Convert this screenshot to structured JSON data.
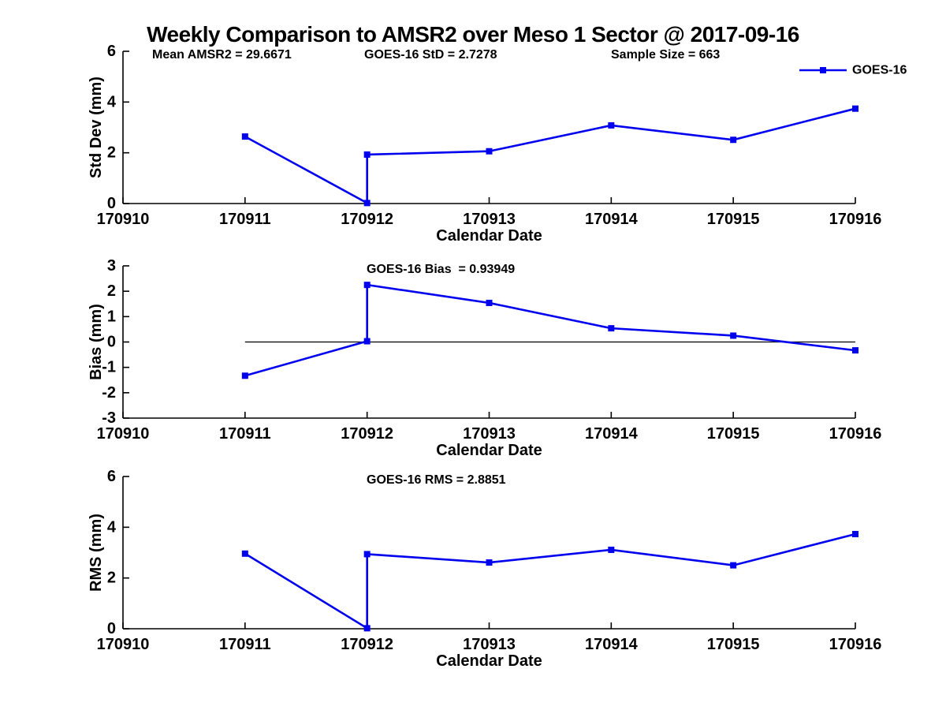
{
  "figure": {
    "title": "Weekly Comparison to AMSR2 over Meso 1 Sector @ 2017-09-16",
    "background_color": "#ffffff",
    "text_color": "#000000",
    "series_color": "#0000ee",
    "axis_color": "#000000"
  },
  "chart_data": [
    {
      "type": "line",
      "name": "std-dev",
      "title": "",
      "ylabel": "Std Dev (mm)",
      "xlabel": "Calendar Date",
      "xlim": [
        170910,
        170916
      ],
      "ylim": [
        0,
        6
      ],
      "xticks": [
        170910,
        170911,
        170912,
        170913,
        170914,
        170915,
        170916
      ],
      "xtick_labels": [
        "170910",
        "170911",
        "170912",
        "170913",
        "170914",
        "170915",
        "170916"
      ],
      "yticks": [
        0,
        2,
        4,
        6
      ],
      "ytick_labels": [
        "0",
        "2",
        "4",
        "6"
      ],
      "grid": false,
      "annotations": [
        "Mean AMSR2 = 29.6671",
        "GOES-16 StD = 2.7278",
        "Sample Size = 663"
      ],
      "legend": {
        "position": "top-right",
        "entries": [
          {
            "label": "GOES-16",
            "color": "#0000ee",
            "marker": "square"
          }
        ]
      },
      "series": [
        {
          "name": "GOES-16",
          "color": "#0000ee",
          "marker": "square",
          "x": [
            170911,
            170912,
            170912,
            170913,
            170914,
            170915,
            170916
          ],
          "y": [
            2.64,
            0.02,
            1.93,
            2.06,
            3.08,
            2.51,
            3.74
          ]
        }
      ]
    },
    {
      "type": "line",
      "name": "bias",
      "title": "",
      "ylabel": "Bias (mm)",
      "xlabel": "Calendar Date",
      "xlim": [
        170910,
        170916
      ],
      "ylim": [
        -3,
        3
      ],
      "xticks": [
        170910,
        170911,
        170912,
        170913,
        170914,
        170915,
        170916
      ],
      "xtick_labels": [
        "170910",
        "170911",
        "170912",
        "170913",
        "170914",
        "170915",
        "170916"
      ],
      "yticks": [
        -3,
        -2,
        -1,
        0,
        1,
        2,
        3
      ],
      "ytick_labels": [
        "-3",
        "-2",
        "-1",
        "0",
        "1",
        "2",
        "3"
      ],
      "grid": false,
      "annotations": [
        "GOES-16 Bias  = 0.93949"
      ],
      "ref_line": {
        "y": 0,
        "x_start": 170911,
        "x_end": 170916,
        "color": "#000000"
      },
      "series": [
        {
          "name": "GOES-16",
          "color": "#0000ee",
          "marker": "square",
          "x": [
            170911,
            170912,
            170912,
            170913,
            170914,
            170915,
            170916
          ],
          "y": [
            -1.33,
            0.03,
            2.25,
            1.54,
            0.54,
            0.25,
            -0.33
          ]
        }
      ]
    },
    {
      "type": "line",
      "name": "rms",
      "title": "",
      "ylabel": "RMS (mm)",
      "xlabel": "Calendar Date",
      "xlim": [
        170910,
        170916
      ],
      "ylim": [
        0,
        6
      ],
      "xticks": [
        170910,
        170911,
        170912,
        170913,
        170914,
        170915,
        170916
      ],
      "xtick_labels": [
        "170910",
        "170911",
        "170912",
        "170913",
        "170914",
        "170915",
        "170916"
      ],
      "yticks": [
        0,
        2,
        4,
        6
      ],
      "ytick_labels": [
        "0",
        "2",
        "4",
        "6"
      ],
      "grid": false,
      "annotations": [
        "GOES-16 RMS = 2.8851"
      ],
      "series": [
        {
          "name": "GOES-16",
          "color": "#0000ee",
          "marker": "square",
          "x": [
            170911,
            170912,
            170912,
            170913,
            170914,
            170915,
            170916
          ],
          "y": [
            2.96,
            0.02,
            2.94,
            2.61,
            3.11,
            2.5,
            3.73
          ]
        }
      ]
    }
  ]
}
